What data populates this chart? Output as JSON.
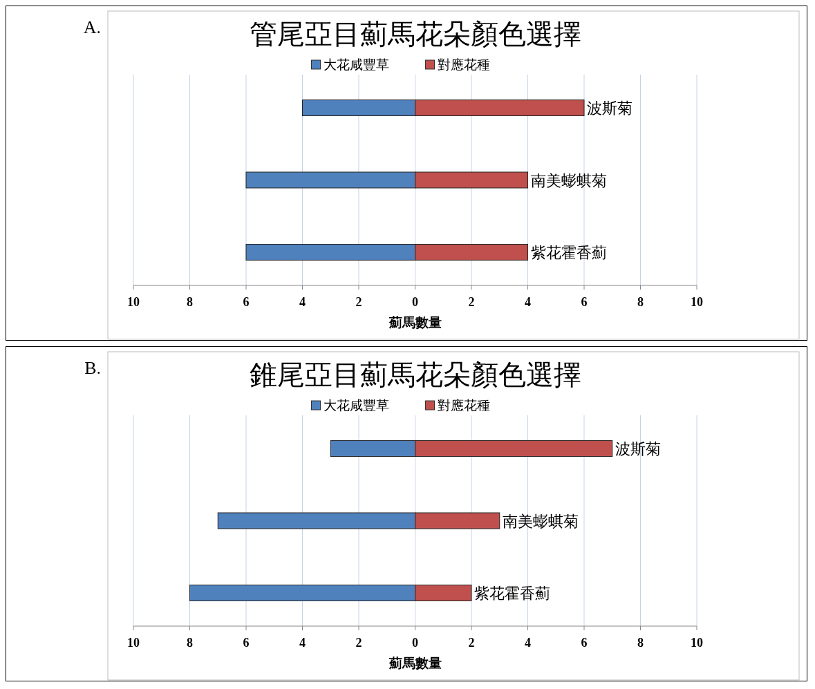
{
  "chart_data": [
    {
      "type": "bar",
      "orientation": "horizontal",
      "stacked": true,
      "title": "管尾亞目薊馬花朵顏色選擇",
      "xlabel": "薊馬數量",
      "annotations": [
        "A."
      ],
      "categories": [
        "波斯菊",
        "南美蟛蜞菊",
        "紫花霍香薊"
      ],
      "series": [
        {
          "name": "大花咸豐草",
          "color": "#4f81bd",
          "values": [
            -4,
            -6,
            -6
          ]
        },
        {
          "name": "對應花種",
          "color": "#c0504d",
          "values": [
            6,
            4,
            4
          ]
        }
      ],
      "xlim": [
        -10,
        10
      ],
      "xticks": [
        {
          "value": -10,
          "label": "10"
        },
        {
          "value": -8,
          "label": "8"
        },
        {
          "value": -6,
          "label": "6"
        },
        {
          "value": -4,
          "label": "4"
        },
        {
          "value": -2,
          "label": "2"
        },
        0,
        2,
        4,
        6,
        8,
        10
      ],
      "grid": "x",
      "legend": "top"
    },
    {
      "type": "bar",
      "orientation": "horizontal",
      "stacked": true,
      "title": "錐尾亞目薊馬花朵顏色選擇",
      "xlabel": "薊馬數量",
      "annotations": [
        "B."
      ],
      "categories": [
        "波斯菊",
        "南美蟛蜞菊",
        "紫花霍香薊"
      ],
      "series": [
        {
          "name": "大花咸豐草",
          "color": "#4f81bd",
          "values": [
            -3,
            -7,
            -8
          ]
        },
        {
          "name": "對應花種",
          "color": "#c0504d",
          "values": [
            7,
            3,
            2
          ]
        }
      ],
      "xlim": [
        -10,
        10
      ],
      "xticks": [
        {
          "value": -10,
          "label": "10"
        },
        {
          "value": -8,
          "label": "8"
        },
        {
          "value": -6,
          "label": "6"
        },
        {
          "value": -4,
          "label": "4"
        },
        {
          "value": -2,
          "label": "2"
        },
        0,
        2,
        4,
        6,
        8,
        10
      ],
      "grid": "x",
      "legend": "top"
    }
  ]
}
